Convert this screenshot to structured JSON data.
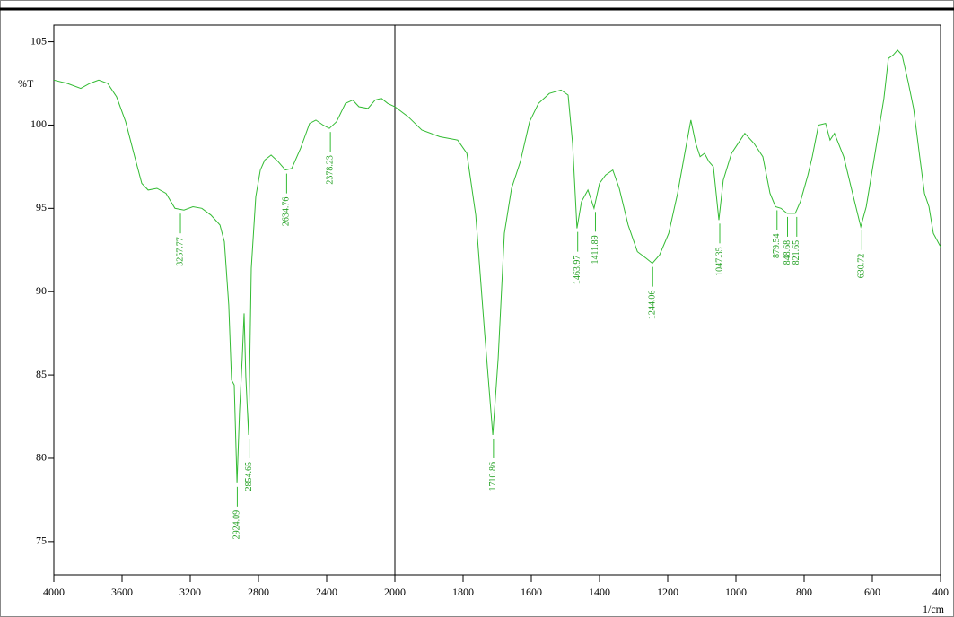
{
  "chart_data": {
    "type": "line",
    "y_label": "%T",
    "x_label": "1/cm",
    "xlim": [
      4000,
      400
    ],
    "x_break": 2000,
    "ylim": [
      73,
      106
    ],
    "xticks": [
      4000,
      3600,
      3200,
      2800,
      2400,
      2000,
      1800,
      1600,
      1400,
      1200,
      1000,
      800,
      600,
      400
    ],
    "yticks": [
      75,
      80,
      85,
      90,
      95,
      100,
      105
    ],
    "color": "#33bb33",
    "x": [
      4000,
      3921,
      3842,
      3789,
      3737,
      3684,
      3632,
      3579,
      3526,
      3484,
      3447,
      3395,
      3342,
      3290,
      3237,
      3184,
      3132,
      3079,
      3026,
      3000,
      2974,
      2958,
      2942,
      2926,
      2911,
      2895,
      2884,
      2874,
      2858,
      2842,
      2816,
      2789,
      2763,
      2726,
      2684,
      2642,
      2605,
      2553,
      2500,
      2463,
      2421,
      2384,
      2342,
      2290,
      2247,
      2211,
      2158,
      2116,
      2079,
      2042,
      2000,
      1961,
      1921,
      1868,
      1816,
      1789,
      1763,
      1737,
      1713,
      1697,
      1679,
      1658,
      1632,
      1605,
      1579,
      1547,
      1513,
      1492,
      1479,
      1466,
      1453,
      1434,
      1416,
      1400,
      1382,
      1361,
      1342,
      1316,
      1289,
      1263,
      1245,
      1224,
      1197,
      1171,
      1150,
      1132,
      1118,
      1105,
      1092,
      1079,
      1066,
      1050,
      1037,
      1013,
      987,
      974,
      947,
      921,
      900,
      884,
      868,
      850,
      837,
      826,
      811,
      789,
      776,
      758,
      737,
      724,
      711,
      684,
      658,
      634,
      618,
      592,
      566,
      553,
      539,
      526,
      513,
      495,
      479,
      461,
      447,
      434,
      421,
      400
    ],
    "values": [
      102.7,
      102.5,
      102.2,
      102.5,
      102.7,
      102.5,
      101.7,
      100.2,
      98.1,
      96.5,
      96.1,
      96.2,
      95.9,
      95.0,
      94.9,
      95.1,
      95.0,
      94.6,
      94.0,
      93.0,
      89.2,
      84.7,
      84.4,
      78.5,
      82.8,
      86.0,
      88.7,
      84.9,
      81.4,
      91.4,
      95.7,
      97.3,
      97.9,
      98.2,
      97.8,
      97.3,
      97.4,
      98.6,
      100.1,
      100.3,
      100.0,
      99.8,
      100.2,
      101.3,
      101.5,
      101.1,
      101.0,
      101.5,
      101.6,
      101.3,
      101.1,
      100.5,
      99.7,
      99.3,
      99.1,
      98.3,
      94.6,
      87.6,
      81.4,
      86.0,
      93.5,
      96.2,
      97.8,
      100.2,
      101.3,
      101.9,
      102.1,
      101.8,
      98.9,
      93.8,
      95.4,
      96.1,
      95.0,
      96.5,
      97.0,
      97.3,
      96.2,
      94.0,
      92.4,
      92.0,
      91.7,
      92.2,
      93.5,
      95.9,
      98.3,
      100.3,
      98.9,
      98.1,
      98.3,
      97.8,
      97.5,
      94.3,
      96.7,
      98.3,
      99.1,
      99.5,
      98.9,
      98.1,
      95.9,
      95.1,
      95.0,
      94.7,
      94.7,
      94.7,
      95.4,
      97.0,
      98.1,
      100.0,
      100.1,
      99.1,
      99.5,
      98.1,
      95.9,
      93.9,
      95.1,
      98.3,
      101.6,
      104.0,
      104.2,
      104.5,
      104.2,
      102.6,
      101.0,
      98.1,
      95.9,
      95.1,
      93.5,
      92.7
    ],
    "peaks": [
      {
        "x": 3257.77,
        "y": 94.9
      },
      {
        "x": 2924.09,
        "y": 78.5
      },
      {
        "x": 2854.65,
        "y": 81.4
      },
      {
        "x": 2634.76,
        "y": 97.3
      },
      {
        "x": 2378.23,
        "y": 99.8
      },
      {
        "x": 1710.86,
        "y": 81.4
      },
      {
        "x": 1463.97,
        "y": 93.8
      },
      {
        "x": 1411.89,
        "y": 95.0
      },
      {
        "x": 1244.06,
        "y": 91.7
      },
      {
        "x": 1047.35,
        "y": 94.3
      },
      {
        "x": 879.54,
        "y": 95.1
      },
      {
        "x": 848.68,
        "y": 94.7
      },
      {
        "x": 821.65,
        "y": 94.7
      },
      {
        "x": 630.72,
        "y": 93.9
      }
    ]
  }
}
